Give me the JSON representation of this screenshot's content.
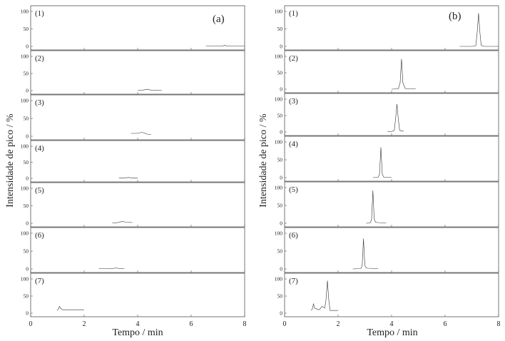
{
  "chart_data": [
    {
      "panel_label": "(a)",
      "type": "line",
      "xlabel": "Tempo / min",
      "ylabel": "Intensidade de pico / %",
      "xlim": [
        0,
        8
      ],
      "ylim": [
        0,
        100
      ],
      "xticks": [
        "0",
        "2",
        "4",
        "6",
        "8"
      ],
      "yticks": [
        "0",
        "50",
        "100"
      ],
      "series": [
        {
          "name": "(1)",
          "x": [
            6.55,
            7.1,
            7.2,
            7.25,
            7.3,
            7.4,
            8.0
          ],
          "y": [
            1,
            1,
            1.5,
            3,
            1.5,
            1,
            1
          ]
        },
        {
          "name": "(2)",
          "x": [
            4.0,
            4.2,
            4.3,
            4.35,
            4.4,
            4.5,
            4.9
          ],
          "y": [
            1,
            1.5,
            3,
            4,
            3,
            1.5,
            1
          ]
        },
        {
          "name": "(3)",
          "x": [
            3.75,
            3.95,
            4.05,
            4.15,
            4.25,
            4.35,
            4.5
          ],
          "y": [
            8,
            8,
            9,
            11,
            9,
            6,
            5
          ]
        },
        {
          "name": "(4)",
          "x": [
            3.3,
            3.5,
            3.6,
            3.65,
            3.7,
            3.8,
            4.0
          ],
          "y": [
            1,
            1.5,
            2,
            3,
            2,
            1.5,
            1
          ]
        },
        {
          "name": "(5)",
          "x": [
            3.05,
            3.2,
            3.3,
            3.4,
            3.45,
            3.5,
            3.6,
            3.8
          ],
          "y": [
            1,
            1.5,
            3,
            5,
            5,
            4,
            3,
            2
          ]
        },
        {
          "name": "(6)",
          "x": [
            2.55,
            2.9,
            3.1,
            3.2,
            3.25,
            3.3,
            3.5
          ],
          "y": [
            1,
            1,
            1.5,
            3,
            2,
            1.5,
            1
          ]
        },
        {
          "name": "(7)",
          "x": [
            1.0,
            1.05,
            1.08,
            1.12,
            1.2,
            1.5,
            2.0
          ],
          "y": [
            8,
            15,
            20,
            14,
            10,
            10,
            10
          ]
        }
      ]
    },
    {
      "panel_label": "(b)",
      "type": "line",
      "xlabel": "Tempo / min",
      "ylabel": "Intensidade de pico / %",
      "xlim": [
        0,
        8
      ],
      "ylim": [
        0,
        100
      ],
      "xticks": [
        "0",
        "2",
        "4",
        "6",
        "8"
      ],
      "yticks": [
        "0",
        "50",
        "100"
      ],
      "series": [
        {
          "name": "(1)",
          "x": [
            6.55,
            7.0,
            7.15,
            7.2,
            7.25,
            7.3,
            7.35,
            7.45,
            8.0
          ],
          "y": [
            0,
            0,
            2,
            40,
            95,
            40,
            3,
            0,
            0
          ]
        },
        {
          "name": "(2)",
          "x": [
            4.0,
            4.25,
            4.32,
            4.37,
            4.42,
            4.5,
            4.55,
            4.9
          ],
          "y": [
            0,
            1,
            20,
            92,
            20,
            3,
            1,
            1
          ]
        },
        {
          "name": "(3)",
          "x": [
            3.85,
            4.0,
            4.1,
            4.15,
            4.2,
            4.25,
            4.3,
            4.45
          ],
          "y": [
            2,
            1,
            5,
            40,
            85,
            40,
            5,
            2
          ]
        },
        {
          "name": "(4)",
          "x": [
            3.3,
            3.5,
            3.55,
            3.6,
            3.65,
            3.7,
            3.75,
            4.0
          ],
          "y": [
            0,
            1,
            10,
            85,
            10,
            2,
            1,
            1
          ]
        },
        {
          "name": "(5)",
          "x": [
            3.05,
            3.2,
            3.25,
            3.3,
            3.35,
            3.4,
            3.5,
            3.8
          ],
          "y": [
            0,
            1,
            10,
            92,
            12,
            3,
            2,
            1
          ]
        },
        {
          "name": "(6)",
          "x": [
            2.55,
            2.85,
            2.9,
            2.95,
            3.0,
            3.05,
            3.1,
            3.5
          ],
          "y": [
            0,
            1,
            10,
            85,
            10,
            3,
            2,
            1
          ]
        },
        {
          "name": "(7)",
          "x": [
            1.0,
            1.05,
            1.08,
            1.12,
            1.2,
            1.3,
            1.4,
            1.5,
            1.55,
            1.6,
            1.65,
            1.7,
            1.8,
            2.0
          ],
          "y": [
            8,
            15,
            28,
            15,
            12,
            10,
            20,
            15,
            40,
            95,
            40,
            8,
            8,
            8
          ]
        }
      ]
    }
  ]
}
